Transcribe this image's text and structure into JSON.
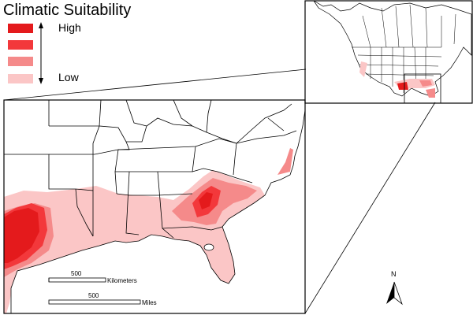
{
  "legend": {
    "title": "Climatic Suitability",
    "high_label": "High",
    "low_label": "Low",
    "classes": [
      {
        "level": 4,
        "color": "#e41a1c"
      },
      {
        "level": 3,
        "color": "#f3383b"
      },
      {
        "level": 2,
        "color": "#f58a8a"
      },
      {
        "level": 1,
        "color": "#fbc6c6"
      }
    ]
  },
  "scalebars": {
    "km": {
      "value": "500",
      "unit": "Kilometers"
    },
    "mi": {
      "value": "500",
      "unit": "Miles"
    }
  },
  "north_arrow": {
    "label": "N"
  },
  "colors": {
    "state_outline": "#000000",
    "panel_border": "#000000",
    "background": "#ffffff"
  }
}
